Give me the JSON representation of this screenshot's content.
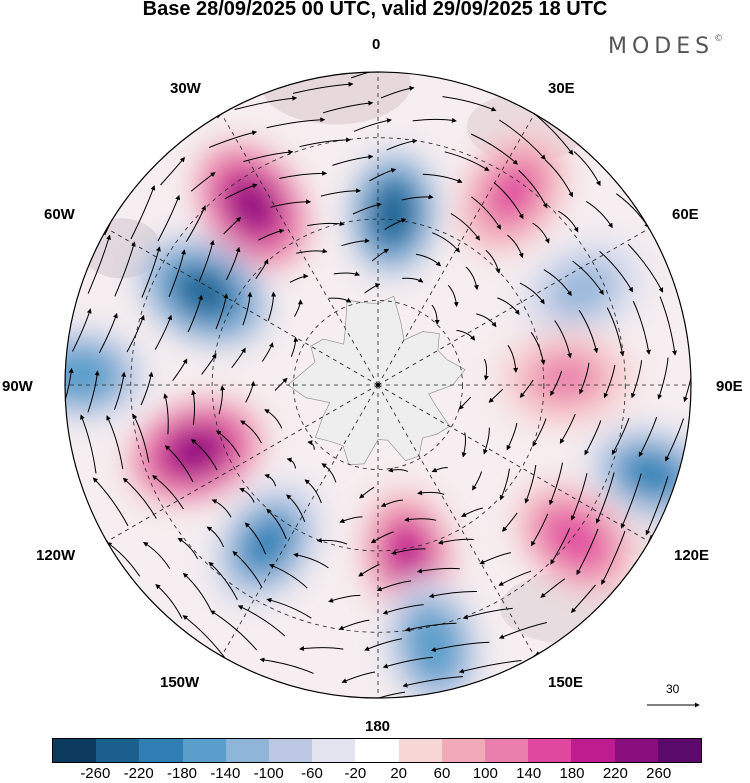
{
  "title": "Base 28/09/2025 00 UTC, valid 29/09/2025 18 UTC",
  "brand": "MODES",
  "brand_mark": "©",
  "longitude_labels": {
    "lon_0": "0",
    "lon_30e": "30E",
    "lon_60e": "60E",
    "lon_90e": "90E",
    "lon_120e": "120E",
    "lon_150e": "150E",
    "lon_180": "180",
    "lon_150w": "150W",
    "lon_120w": "120W",
    "lon_90w": "90W",
    "lon_60w": "60W",
    "lon_30w": "30W"
  },
  "wind_reference": "30",
  "colorbar": {
    "colors": [
      "#0b3a5c",
      "#1b5f8c",
      "#2f7fb5",
      "#5a9ecb",
      "#8fb6d9",
      "#bcc8e4",
      "#e4e4f0",
      "#ffffff",
      "#f8d6d6",
      "#f1aab7",
      "#ea7fae",
      "#e0479f",
      "#bf1d8f",
      "#8a0f7e",
      "#5a0a6a"
    ],
    "tick_labels": [
      "-260",
      "-220",
      "-180",
      "-140",
      "-100",
      "-60",
      "-20",
      "20",
      "60",
      "100",
      "140",
      "180",
      "220",
      "260"
    ]
  },
  "map_data": {
    "projection": "south polar stereographic",
    "variable": "geopotential anomaly (shaded) with wind vectors",
    "anomaly_centers": [
      {
        "lon": 5,
        "colat": 0.55,
        "value": -240
      },
      {
        "lon": 35,
        "colat": 0.75,
        "value": 140
      },
      {
        "lon": -35,
        "colat": 0.7,
        "value": 240
      },
      {
        "lon": -62,
        "colat": 0.63,
        "value": -250
      },
      {
        "lon": -88,
        "colat": 0.95,
        "value": -180
      },
      {
        "lon": 65,
        "colat": 0.72,
        "value": -110
      },
      {
        "lon": 88,
        "colat": 0.6,
        "value": 120
      },
      {
        "lon": 108,
        "colat": 0.92,
        "value": -220
      },
      {
        "lon": 128,
        "colat": 0.8,
        "value": 170
      },
      {
        "lon": -110,
        "colat": 0.62,
        "value": 240
      },
      {
        "lon": -145,
        "colat": 0.62,
        "value": -220
      },
      {
        "lon": 170,
        "colat": 0.55,
        "value": 180
      },
      {
        "lon": 168,
        "colat": 0.85,
        "value": -180
      }
    ]
  }
}
